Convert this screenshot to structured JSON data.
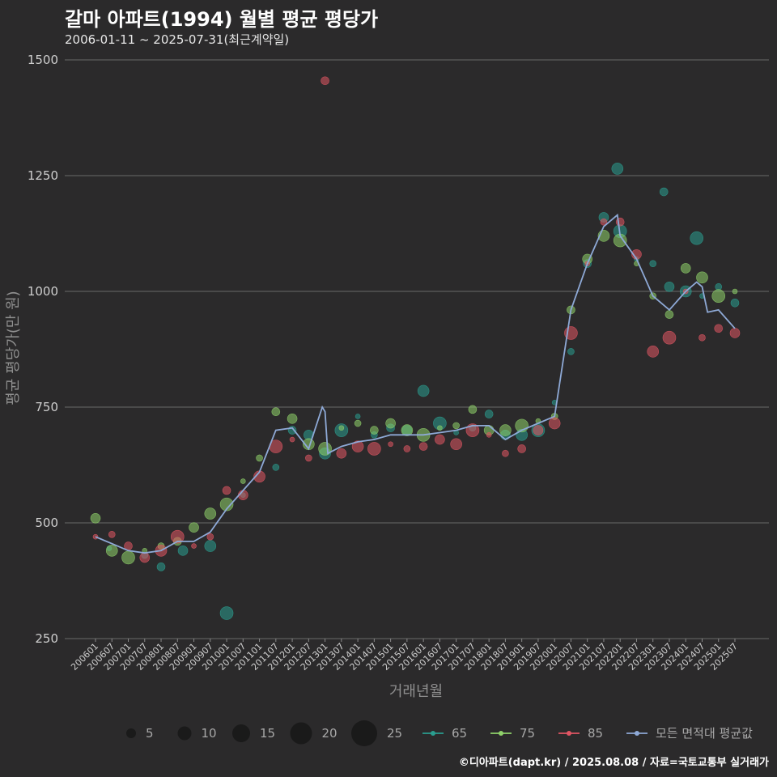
{
  "header": {
    "title": "갈마 아파트(1994) 월별 평균 평당가",
    "subtitle": "2006-01-11 ~ 2025-07-31(최근계약일)"
  },
  "footer": {
    "credit": "©디아파트(dapt.kr) / 2025.08.08 / 자료=국토교통부 실거래가"
  },
  "chart_data": {
    "type": "scatter",
    "xlabel": "거래년월",
    "ylabel": "평균 평당가(만 원)",
    "ylim": [
      250,
      1500
    ],
    "yticks": [
      250,
      500,
      750,
      1000,
      1250,
      1500
    ],
    "xticks": [
      "200601",
      "200607",
      "200701",
      "200707",
      "200801",
      "200807",
      "200901",
      "200907",
      "201001",
      "201007",
      "201101",
      "201107",
      "201201",
      "201207",
      "201301",
      "201307",
      "201401",
      "201407",
      "201501",
      "201507",
      "201601",
      "201607",
      "201701",
      "201707",
      "201801",
      "201807",
      "201901",
      "201907",
      "202001",
      "202007",
      "202101",
      "202107",
      "202201",
      "202207",
      "202301",
      "202307",
      "202401",
      "202407",
      "202501",
      "202507"
    ],
    "grid": true,
    "legend_position": "bottom",
    "size_legend": [
      5,
      10,
      15,
      20,
      25
    ],
    "series_colors": {
      "65": "#2a9d8f",
      "75": "#8fd16a",
      "85": "#e05563",
      "avg": "#8ea9d6"
    },
    "series": [
      {
        "name": "65",
        "color": "#2a9d8f",
        "points": [
          [
            "200606",
            445
          ],
          [
            "200707",
            430
          ],
          [
            "200801",
            405
          ],
          [
            "200809",
            440
          ],
          [
            "200907",
            450
          ],
          [
            "201001",
            305
          ],
          [
            "201007",
            560
          ],
          [
            "201107",
            620
          ],
          [
            "201201",
            700
          ],
          [
            "201207",
            690
          ],
          [
            "201301",
            650
          ],
          [
            "201307",
            700
          ],
          [
            "201401",
            730
          ],
          [
            "201407",
            690
          ],
          [
            "201501",
            705
          ],
          [
            "201507",
            700
          ],
          [
            "201601",
            785
          ],
          [
            "201607",
            715
          ],
          [
            "201701",
            695
          ],
          [
            "201707",
            705
          ],
          [
            "201801",
            735
          ],
          [
            "201807",
            690
          ],
          [
            "201901",
            690
          ],
          [
            "201907",
            700
          ],
          [
            "202001",
            760
          ],
          [
            "202007",
            870
          ],
          [
            "202101",
            1060
          ],
          [
            "202107",
            1160
          ],
          [
            "202112",
            1265
          ],
          [
            "202201",
            1130
          ],
          [
            "202207",
            1070
          ],
          [
            "202301",
            1060
          ],
          [
            "202305",
            1215
          ],
          [
            "202307",
            1010
          ],
          [
            "202401",
            1000
          ],
          [
            "202405",
            1115
          ],
          [
            "202407",
            990
          ],
          [
            "202501",
            1010
          ],
          [
            "202507",
            975
          ]
        ]
      },
      {
        "name": "75",
        "color": "#8fd16a",
        "points": [
          [
            "200601",
            510
          ],
          [
            "200607",
            440
          ],
          [
            "200701",
            425
          ],
          [
            "200707",
            440
          ],
          [
            "200801",
            450
          ],
          [
            "200807",
            460
          ],
          [
            "200901",
            490
          ],
          [
            "200907",
            520
          ],
          [
            "201001",
            540
          ],
          [
            "201007",
            590
          ],
          [
            "201101",
            640
          ],
          [
            "201107",
            740
          ],
          [
            "201201",
            725
          ],
          [
            "201207",
            670
          ],
          [
            "201301",
            660
          ],
          [
            "201307",
            705
          ],
          [
            "201401",
            715
          ],
          [
            "201407",
            700
          ],
          [
            "201501",
            715
          ],
          [
            "201507",
            700
          ],
          [
            "201601",
            690
          ],
          [
            "201607",
            705
          ],
          [
            "201701",
            710
          ],
          [
            "201707",
            745
          ],
          [
            "201801",
            700
          ],
          [
            "201807",
            700
          ],
          [
            "201901",
            710
          ],
          [
            "201907",
            720
          ],
          [
            "202001",
            730
          ],
          [
            "202007",
            960
          ],
          [
            "202101",
            1070
          ],
          [
            "202107",
            1120
          ],
          [
            "202201",
            1110
          ],
          [
            "202207",
            1060
          ],
          [
            "202301",
            990
          ],
          [
            "202307",
            950
          ],
          [
            "202401",
            1050
          ],
          [
            "202407",
            1030
          ],
          [
            "202501",
            990
          ],
          [
            "202507",
            1000
          ]
        ]
      },
      {
        "name": "85",
        "color": "#e05563",
        "points": [
          [
            "200601",
            470
          ],
          [
            "200607",
            475
          ],
          [
            "200701",
            450
          ],
          [
            "200707",
            425
          ],
          [
            "200801",
            440
          ],
          [
            "200807",
            470
          ],
          [
            "200901",
            450
          ],
          [
            "200907",
            470
          ],
          [
            "201001",
            570
          ],
          [
            "201007",
            560
          ],
          [
            "201101",
            600
          ],
          [
            "201107",
            665
          ],
          [
            "201201",
            680
          ],
          [
            "201207",
            640
          ],
          [
            "201301",
            1455
          ],
          [
            "201307",
            650
          ],
          [
            "201401",
            665
          ],
          [
            "201407",
            660
          ],
          [
            "201501",
            670
          ],
          [
            "201507",
            660
          ],
          [
            "201601",
            665
          ],
          [
            "201607",
            680
          ],
          [
            "201701",
            670
          ],
          [
            "201707",
            700
          ],
          [
            "201801",
            690
          ],
          [
            "201807",
            650
          ],
          [
            "201901",
            660
          ],
          [
            "201907",
            700
          ],
          [
            "202001",
            715
          ],
          [
            "202007",
            910
          ],
          [
            "202101",
            1060
          ],
          [
            "202107",
            1150
          ],
          [
            "202201",
            1150
          ],
          [
            "202207",
            1080
          ],
          [
            "202301",
            870
          ],
          [
            "202307",
            900
          ],
          [
            "202401",
            1000
          ],
          [
            "202407",
            900
          ],
          [
            "202501",
            920
          ],
          [
            "202507",
            910
          ]
        ]
      },
      {
        "name": "모든 면적대 평균값",
        "color": "#8ea9d6",
        "line": [
          [
            "200601",
            470
          ],
          [
            "200607",
            455
          ],
          [
            "200701",
            440
          ],
          [
            "200707",
            435
          ],
          [
            "200801",
            440
          ],
          [
            "200807",
            460
          ],
          [
            "200901",
            460
          ],
          [
            "200907",
            480
          ],
          [
            "201001",
            530
          ],
          [
            "201007",
            570
          ],
          [
            "201101",
            610
          ],
          [
            "201107",
            700
          ],
          [
            "201201",
            705
          ],
          [
            "201207",
            660
          ],
          [
            "201212",
            750
          ],
          [
            "201301",
            740
          ],
          [
            "201302",
            650
          ],
          [
            "201307",
            665
          ],
          [
            "201401",
            675
          ],
          [
            "201407",
            680
          ],
          [
            "201501",
            690
          ],
          [
            "201507",
            690
          ],
          [
            "201601",
            690
          ],
          [
            "201607",
            695
          ],
          [
            "201701",
            700
          ],
          [
            "201707",
            710
          ],
          [
            "201801",
            710
          ],
          [
            "201807",
            680
          ],
          [
            "201901",
            700
          ],
          [
            "201907",
            715
          ],
          [
            "202001",
            730
          ],
          [
            "202007",
            960
          ],
          [
            "202101",
            1060
          ],
          [
            "202107",
            1140
          ],
          [
            "202112",
            1165
          ],
          [
            "202201",
            1120
          ],
          [
            "202207",
            1070
          ],
          [
            "202301",
            990
          ],
          [
            "202307",
            960
          ],
          [
            "202401",
            1000
          ],
          [
            "202405",
            1020
          ],
          [
            "202407",
            1010
          ],
          [
            "202409",
            955
          ],
          [
            "202501",
            960
          ],
          [
            "202507",
            920
          ]
        ]
      }
    ]
  }
}
